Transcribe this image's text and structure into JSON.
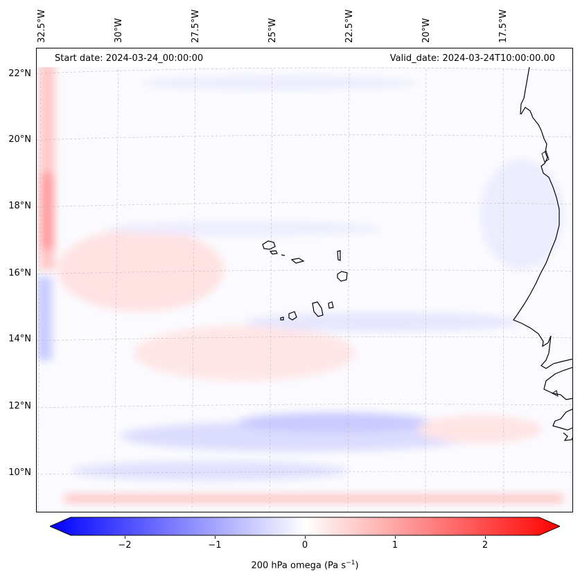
{
  "header": {
    "start_date": "Start date: 2024-03-24_00:00:00",
    "valid_date": "Valid_date: 2024-03-24T10:00:00.00"
  },
  "map": {
    "variable": "200 hPa omega",
    "projection": "regional lat-lon (Cape Verde / West Africa)",
    "lat_labels": [
      "22°N",
      "20°N",
      "18°N",
      "16°N",
      "14°N",
      "12°N",
      "10°N"
    ],
    "lon_labels": [
      "32.5°W",
      "30°W",
      "27.5°W",
      "25°W",
      "22.5°W",
      "20°W",
      "17.5°W"
    ],
    "coastline_color": "#000000",
    "gridline_color": "#b0b0b0"
  },
  "colorbar": {
    "label_main": "200 hPa omega (Pa s",
    "label_exp": "−1",
    "label_close": ")",
    "ticks": [
      "−2",
      "−1",
      "0",
      "1",
      "2"
    ],
    "min": -2.6,
    "max": 2.6,
    "low_color": "#0000ff",
    "mid_color": "#ffffff",
    "high_color": "#ff0000"
  }
}
